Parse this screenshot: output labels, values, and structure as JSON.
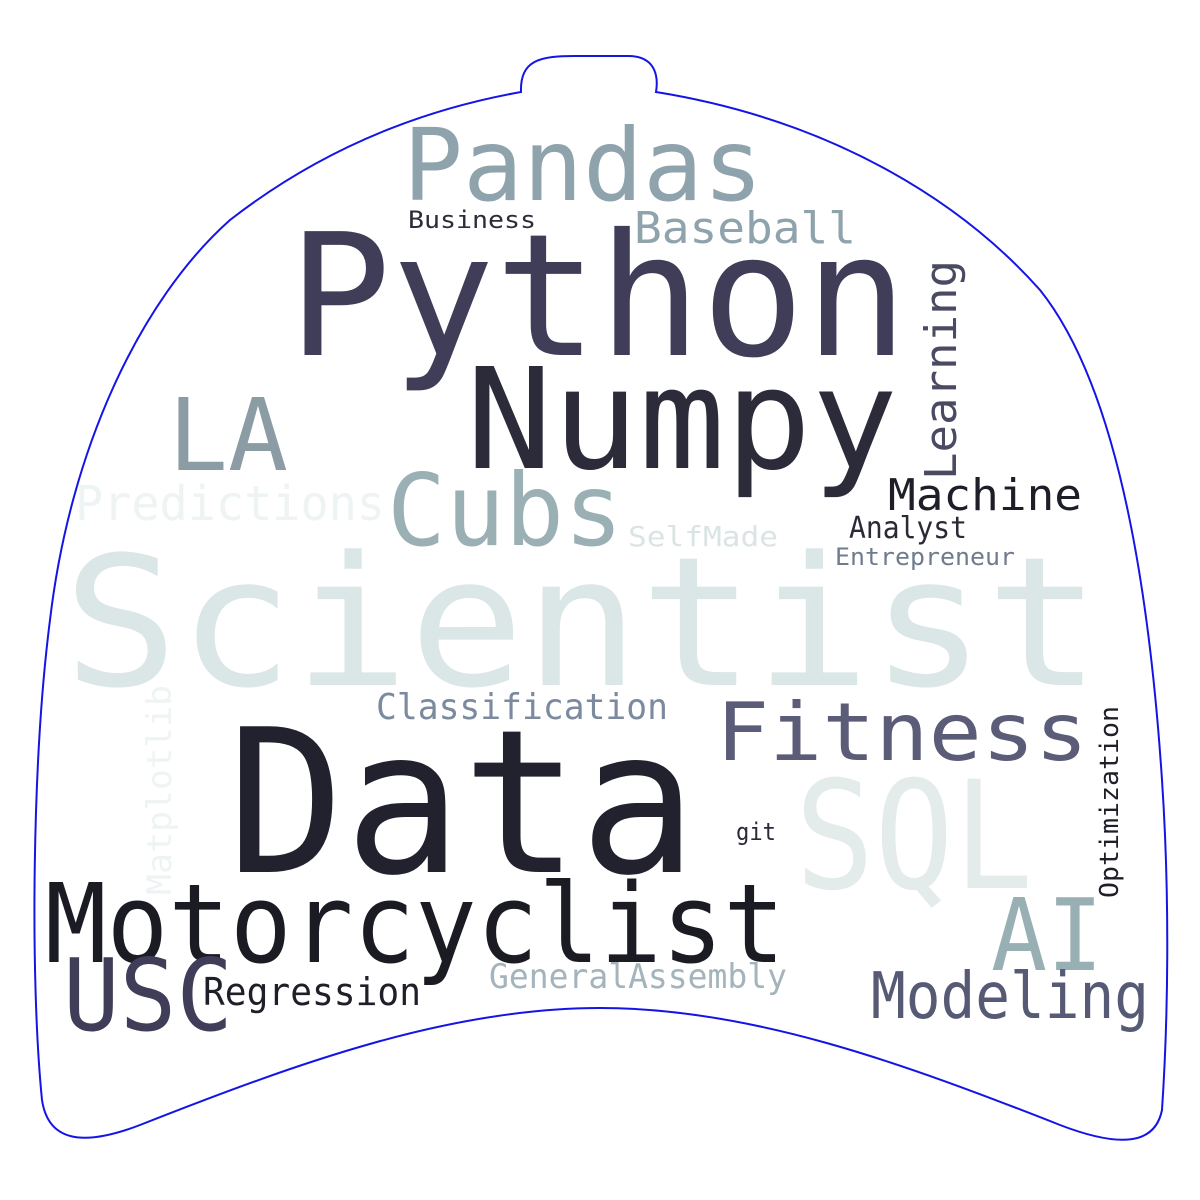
{
  "outline_color": "#1414e6",
  "background": "#ffffff",
  "words": [
    {
      "text": "Scientist",
      "color": "#dbe6e6"
    },
    {
      "text": "Data",
      "color": "#22222e"
    },
    {
      "text": "Python",
      "color": "#403d58"
    },
    {
      "text": "Numpy",
      "color": "#2c2b3a"
    },
    {
      "text": "Motorcyclist",
      "color": "#1b1b24"
    },
    {
      "text": "Pandas",
      "color": "#8fa3ad"
    },
    {
      "text": "SQL",
      "color": "#e3ebeb"
    },
    {
      "text": "Cubs",
      "color": "#9ab0b5"
    },
    {
      "text": "LA",
      "color": "#8b9ca5"
    },
    {
      "text": "USC",
      "color": "#403d58"
    },
    {
      "text": "AI",
      "color": "#98b0b4"
    },
    {
      "text": "Fitness",
      "color": "#5b5d78"
    },
    {
      "text": "Modeling",
      "color": "#575a75"
    },
    {
      "text": "Predictions",
      "color": "#eef3f3"
    },
    {
      "text": "Learning",
      "color": "#4a4a62"
    },
    {
      "text": "Machine",
      "color": "#1e1e28"
    },
    {
      "text": "Baseball",
      "color": "#8fa3ad"
    },
    {
      "text": "Classification",
      "color": "#7b8a9e"
    },
    {
      "text": "Regression",
      "color": "#1f1f29"
    },
    {
      "text": "GeneralAssembly",
      "color": "#a4b4bc"
    },
    {
      "text": "Matplotlib",
      "color": "#eef3f3"
    },
    {
      "text": "Optimization",
      "color": "#1f1f29"
    },
    {
      "text": "Analyst",
      "color": "#2a2a36"
    },
    {
      "text": "SelfMade",
      "color": "#dbe4e4"
    },
    {
      "text": "Entrepreneur",
      "color": "#6f7c8e"
    },
    {
      "text": "Business",
      "color": "#2d2d3a"
    },
    {
      "text": "git",
      "color": "#2a2a36"
    }
  ]
}
